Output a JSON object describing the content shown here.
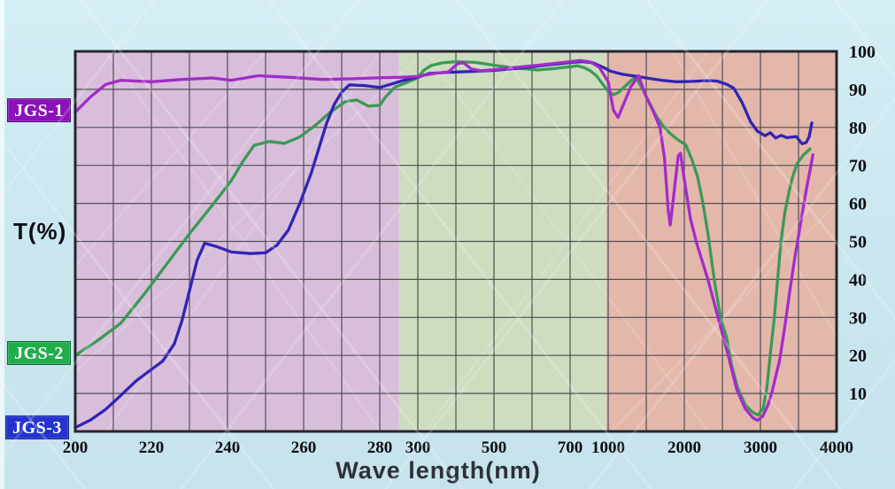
{
  "chart_data": {
    "type": "line",
    "title": "",
    "xlabel": "Wave length(nm)",
    "ylabel": "T(%)",
    "ylim": [
      0,
      100
    ],
    "grid": true,
    "legend_position": "outside-left",
    "x_scale": "piecewise-nonlinear",
    "x_scale_anchors": [
      [
        200,
        0.0
      ],
      [
        220,
        0.1
      ],
      [
        240,
        0.2
      ],
      [
        260,
        0.3
      ],
      [
        280,
        0.4
      ],
      [
        300,
        0.45
      ],
      [
        500,
        0.55
      ],
      [
        700,
        0.65
      ],
      [
        1000,
        0.7
      ],
      [
        2000,
        0.8
      ],
      [
        3000,
        0.9
      ],
      [
        4000,
        1.0
      ]
    ],
    "x_ticks": [
      {
        "nm": 200,
        "label": "200"
      },
      {
        "nm": 220,
        "label": "220"
      },
      {
        "nm": 240,
        "label": "240"
      },
      {
        "nm": 260,
        "label": "260"
      },
      {
        "nm": 280,
        "label": "280"
      },
      {
        "nm": 300,
        "label": "300"
      },
      {
        "nm": 500,
        "label": "500"
      },
      {
        "nm": 700,
        "label": "700"
      },
      {
        "nm": 1000,
        "label": "1000"
      },
      {
        "nm": 2000,
        "label": "2000"
      },
      {
        "nm": 3000,
        "label": "3000"
      },
      {
        "nm": 4000,
        "label": "4000"
      }
    ],
    "y_ticks": [
      {
        "value": 100,
        "label": "100"
      },
      {
        "value": 90,
        "label": "90"
      },
      {
        "value": 80,
        "label": "80"
      },
      {
        "value": 70,
        "label": "70"
      },
      {
        "value": 60,
        "label": "60"
      },
      {
        "value": 50,
        "label": "50"
      },
      {
        "value": 40,
        "label": "40"
      },
      {
        "value": 30,
        "label": "30"
      },
      {
        "value": 20,
        "label": "20"
      },
      {
        "value": 10,
        "label": "10"
      }
    ],
    "bands": [
      {
        "name": "uv-band",
        "from_nm": 200,
        "to_nm": 290,
        "color": "#d9bedb"
      },
      {
        "name": "visible-band",
        "from_nm": 290,
        "to_nm": 986,
        "color": "#cedcc0"
      },
      {
        "name": "infrared-band",
        "from_nm": 986,
        "to_nm": 4000,
        "color": "#e4b7ab"
      }
    ],
    "series": [
      {
        "name": "JGS-1",
        "color": "#a22cc9",
        "label_bg": "#8a12b8",
        "points": [
          [
            200,
            84
          ],
          [
            204,
            88
          ],
          [
            208,
            91.3
          ],
          [
            212,
            92.4
          ],
          [
            220,
            92
          ],
          [
            228,
            92.6
          ],
          [
            236,
            93
          ],
          [
            241,
            92.4
          ],
          [
            248,
            93.6
          ],
          [
            256,
            93.2
          ],
          [
            265,
            92.6
          ],
          [
            273,
            92.8
          ],
          [
            282,
            93.1
          ],
          [
            292,
            93.2
          ],
          [
            300,
            93.4
          ],
          [
            320,
            93.8
          ],
          [
            350,
            94.3
          ],
          [
            380,
            94.6
          ],
          [
            405,
            96.8
          ],
          [
            420,
            97
          ],
          [
            440,
            95.4
          ],
          [
            465,
            94.9
          ],
          [
            500,
            95.2
          ],
          [
            560,
            95.8
          ],
          [
            620,
            96.4
          ],
          [
            700,
            97.3
          ],
          [
            780,
            97.6
          ],
          [
            860,
            97.2
          ],
          [
            930,
            95.8
          ],
          [
            1000,
            92
          ],
          [
            1070,
            84.5
          ],
          [
            1130,
            82.6
          ],
          [
            1210,
            86.5
          ],
          [
            1300,
            90.8
          ],
          [
            1400,
            93.6
          ],
          [
            1490,
            88.5
          ],
          [
            1590,
            84.3
          ],
          [
            1680,
            80
          ],
          [
            1740,
            72
          ],
          [
            1790,
            58
          ],
          [
            1815,
            54.3
          ],
          [
            1860,
            62
          ],
          [
            1920,
            72.5
          ],
          [
            1950,
            73.2
          ],
          [
            2000,
            66.3
          ],
          [
            2080,
            56
          ],
          [
            2170,
            49
          ],
          [
            2310,
            40
          ],
          [
            2450,
            29.5
          ],
          [
            2570,
            20.5
          ],
          [
            2690,
            11
          ],
          [
            2800,
            6
          ],
          [
            2900,
            3.6
          ],
          [
            2960,
            2.9
          ],
          [
            3030,
            4
          ],
          [
            3100,
            7
          ],
          [
            3160,
            11
          ],
          [
            3200,
            14.5
          ],
          [
            3250,
            18.5
          ],
          [
            3320,
            27.5
          ],
          [
            3390,
            37.5
          ],
          [
            3450,
            45.5
          ],
          [
            3500,
            51.5
          ],
          [
            3555,
            58
          ],
          [
            3610,
            64.5
          ],
          [
            3655,
            69
          ],
          [
            3690,
            72.8
          ]
        ]
      },
      {
        "name": "JGS-2",
        "color": "#3a9a55",
        "label_bg": "#1fae4a",
        "points": [
          [
            200,
            20
          ],
          [
            206,
            24
          ],
          [
            212,
            28.5
          ],
          [
            218,
            36
          ],
          [
            224,
            44
          ],
          [
            230,
            52
          ],
          [
            236,
            59.5
          ],
          [
            241,
            66
          ],
          [
            244,
            71
          ],
          [
            247,
            75.3
          ],
          [
            251,
            76.3
          ],
          [
            255,
            75.8
          ],
          [
            259,
            77.5
          ],
          [
            263,
            80.5
          ],
          [
            267,
            84
          ],
          [
            271,
            86.8
          ],
          [
            274,
            87.2
          ],
          [
            277,
            85.6
          ],
          [
            280,
            85.8
          ],
          [
            283,
            88
          ],
          [
            288,
            90.6
          ],
          [
            294,
            91.8
          ],
          [
            300,
            93
          ],
          [
            315,
            95
          ],
          [
            335,
            96.3
          ],
          [
            365,
            97
          ],
          [
            400,
            97.3
          ],
          [
            450,
            97.1
          ],
          [
            510,
            96.2
          ],
          [
            560,
            95.6
          ],
          [
            615,
            95.1
          ],
          [
            660,
            95.5
          ],
          [
            710,
            96
          ],
          [
            760,
            96.2
          ],
          [
            810,
            95.7
          ],
          [
            860,
            94.9
          ],
          [
            910,
            93.5
          ],
          [
            955,
            91.5
          ],
          [
            1010,
            89.2
          ],
          [
            1075,
            88.6
          ],
          [
            1135,
            89.2
          ],
          [
            1220,
            90.8
          ],
          [
            1300,
            92.3
          ],
          [
            1360,
            93.3
          ],
          [
            1445,
            90.3
          ],
          [
            1525,
            87.2
          ],
          [
            1620,
            83.4
          ],
          [
            1720,
            80.4
          ],
          [
            1825,
            78.2
          ],
          [
            1920,
            76.7
          ],
          [
            2020,
            75.4
          ],
          [
            2100,
            71.5
          ],
          [
            2175,
            67
          ],
          [
            2245,
            60
          ],
          [
            2310,
            52
          ],
          [
            2400,
            39
          ],
          [
            2480,
            29.5
          ],
          [
            2555,
            24.8
          ],
          [
            2620,
            17.5
          ],
          [
            2700,
            11.5
          ],
          [
            2800,
            7
          ],
          [
            2900,
            5
          ],
          [
            2965,
            4.3
          ],
          [
            3035,
            6
          ],
          [
            3085,
            11.5
          ],
          [
            3130,
            20.5
          ],
          [
            3180,
            29.5
          ],
          [
            3225,
            40
          ],
          [
            3270,
            50
          ],
          [
            3320,
            57.5
          ],
          [
            3370,
            62.5
          ],
          [
            3415,
            66.5
          ],
          [
            3480,
            70.5
          ],
          [
            3565,
            72.8
          ],
          [
            3650,
            74.3
          ]
        ]
      },
      {
        "name": "JGS-3",
        "color": "#3224b4",
        "label_bg": "#2433cf",
        "points": [
          [
            200,
            1
          ],
          [
            204,
            3
          ],
          [
            208,
            5.8
          ],
          [
            212,
            9.5
          ],
          [
            216,
            13.3
          ],
          [
            220,
            16.3
          ],
          [
            223,
            18.5
          ],
          [
            226,
            23
          ],
          [
            228,
            29
          ],
          [
            230,
            37
          ],
          [
            232,
            45
          ],
          [
            234,
            49.5
          ],
          [
            237,
            48.7
          ],
          [
            241,
            47.2
          ],
          [
            246,
            46.8
          ],
          [
            250,
            47
          ],
          [
            253,
            49
          ],
          [
            256,
            53
          ],
          [
            259,
            60
          ],
          [
            262,
            68
          ],
          [
            264,
            74.5
          ],
          [
            266,
            81
          ],
          [
            268,
            86
          ],
          [
            270,
            89.3
          ],
          [
            272,
            91.2
          ],
          [
            276,
            91
          ],
          [
            280,
            90.5
          ],
          [
            286,
            91.4
          ],
          [
            292,
            92.3
          ],
          [
            300,
            93.2
          ],
          [
            330,
            94.2
          ],
          [
            380,
            94.5
          ],
          [
            440,
            94.7
          ],
          [
            500,
            95
          ],
          [
            570,
            95.6
          ],
          [
            640,
            96.4
          ],
          [
            720,
            97.1
          ],
          [
            800,
            97.3
          ],
          [
            880,
            97
          ],
          [
            960,
            95.8
          ],
          [
            1030,
            94.8
          ],
          [
            1180,
            94
          ],
          [
            1350,
            93.5
          ],
          [
            1500,
            93
          ],
          [
            1700,
            92.4
          ],
          [
            1900,
            92
          ],
          [
            2100,
            92.1
          ],
          [
            2300,
            92.3
          ],
          [
            2430,
            92.2
          ],
          [
            2560,
            91.3
          ],
          [
            2650,
            90.3
          ],
          [
            2760,
            86.5
          ],
          [
            2870,
            81.5
          ],
          [
            2960,
            79
          ],
          [
            3060,
            77.8
          ],
          [
            3130,
            78.6
          ],
          [
            3200,
            77.2
          ],
          [
            3270,
            77.9
          ],
          [
            3350,
            77.3
          ],
          [
            3470,
            77.6
          ],
          [
            3545,
            75.7
          ],
          [
            3600,
            76
          ],
          [
            3640,
            77.5
          ],
          [
            3675,
            81.2
          ]
        ]
      }
    ]
  }
}
